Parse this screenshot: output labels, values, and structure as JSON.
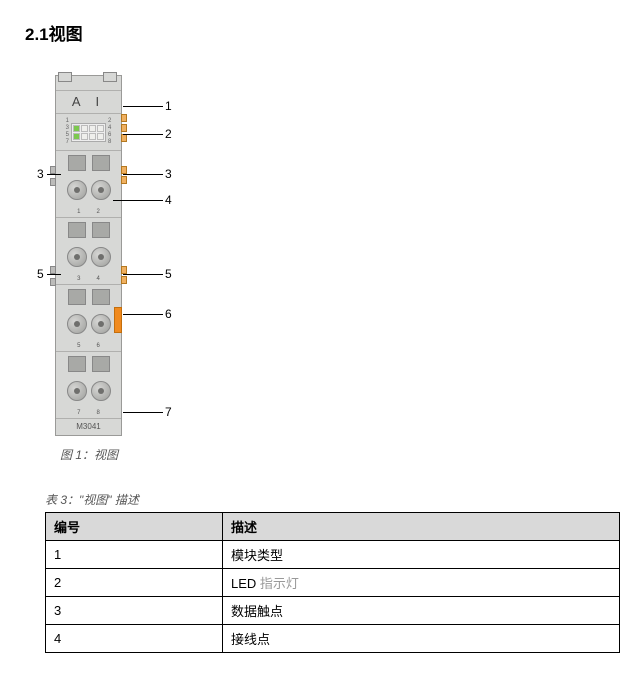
{
  "section_title": "2.1视图",
  "figure": {
    "module_label": "A I",
    "model_number": "M3041",
    "led_left_nums": [
      "1",
      "3",
      "5",
      "7"
    ],
    "led_right_nums": [
      "2",
      "4",
      "6",
      "8"
    ],
    "term_pin_labels": [
      [
        "1",
        "2"
      ],
      [
        "3",
        "4"
      ],
      [
        "5",
        "6"
      ],
      [
        "7",
        "8"
      ]
    ],
    "callouts": {
      "c1": "1",
      "c2": "2",
      "c3_left": "3",
      "c3_right": "3",
      "c4": "4",
      "c5_left": "5",
      "c5_right": "5",
      "c6": "6",
      "c7": "7"
    },
    "caption": "图 1：视图"
  },
  "table": {
    "caption": "表 3：\"视图\" 描述",
    "header_num": "编号",
    "header_desc": "描述",
    "rows": [
      {
        "num": "1",
        "desc_pre": "模块类型",
        "desc_gray": ""
      },
      {
        "num": "2",
        "desc_pre": "LED ",
        "desc_gray": "指示灯"
      },
      {
        "num": "3",
        "desc_pre": "数据触点",
        "desc_gray": ""
      },
      {
        "num": "4",
        "desc_pre": "接线点",
        "desc_gray": ""
      }
    ]
  },
  "colors": {
    "header_bg": "#d9d9d9",
    "orange": "#f08a1e",
    "led_green": "#7cc84e"
  }
}
